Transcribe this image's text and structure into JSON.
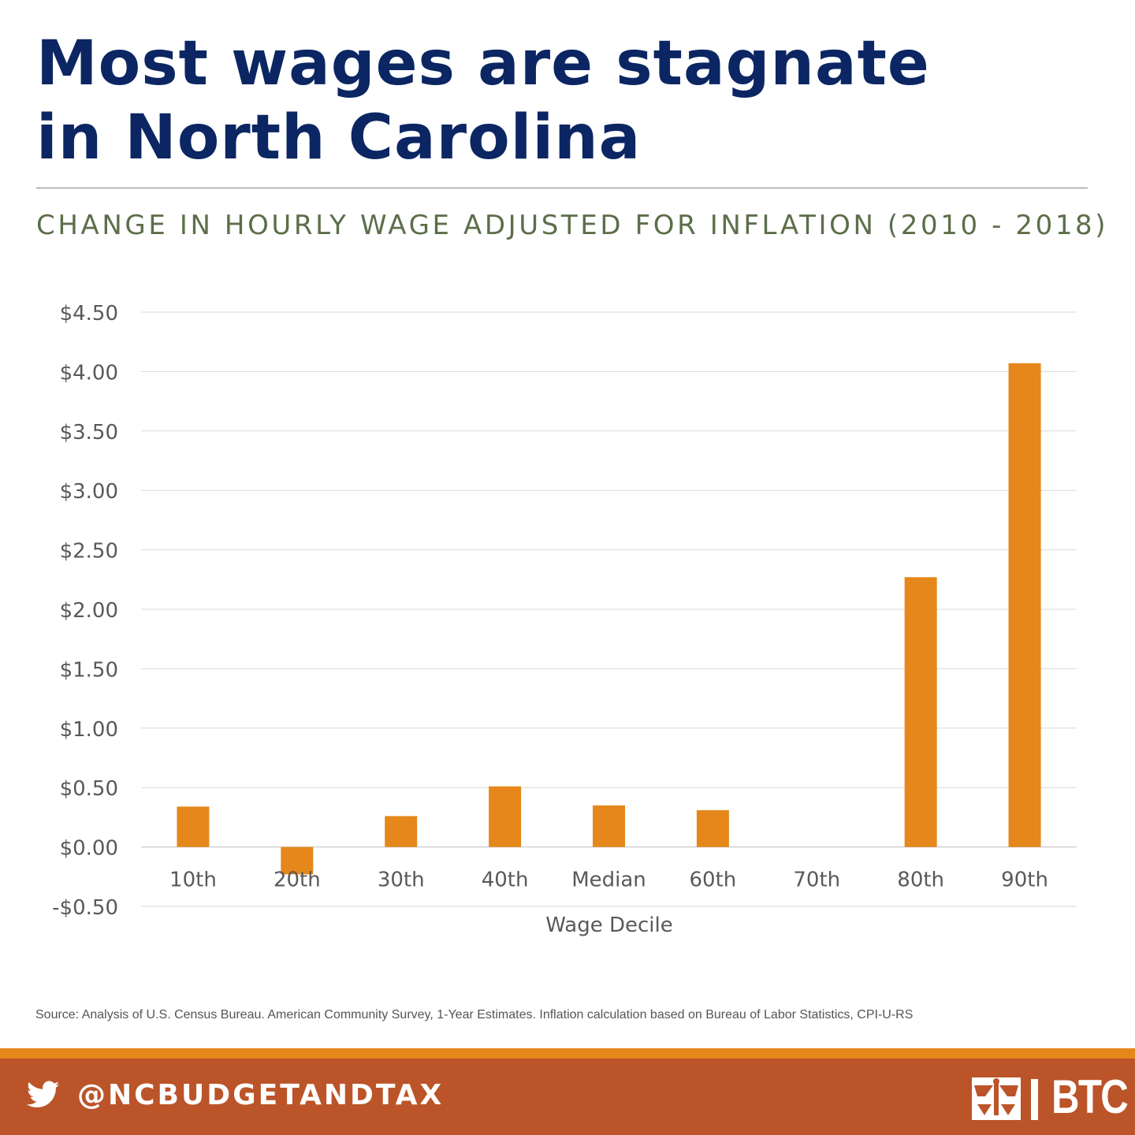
{
  "header": {
    "title_line1": "Most wages are stagnate",
    "title_line2": "in North Carolina",
    "subtitle": "CHANGE IN HOURLY WAGE ADJUSTED FOR INFLATION (2010 - 2018)"
  },
  "chart_data": {
    "type": "bar",
    "categories": [
      "10th",
      "20th",
      "30th",
      "40th",
      "Median",
      "60th",
      "70th",
      "80th",
      "90th"
    ],
    "values": [
      0.34,
      -0.23,
      0.26,
      0.51,
      0.35,
      0.31,
      0.0,
      2.27,
      4.07
    ],
    "xlabel": "Wage Decile",
    "ylabel": "",
    "ylim": [
      -0.5,
      4.5
    ],
    "yticks": [
      4.5,
      4.0,
      3.5,
      3.0,
      2.5,
      2.0,
      1.5,
      1.0,
      0.5,
      0.0,
      -0.5
    ],
    "ytick_labels": [
      "$4.50",
      "$4.00",
      "$3.50",
      "$3.00",
      "$2.50",
      "$2.00",
      "$1.50",
      "$1.00",
      "$0.50",
      "$0.00",
      "-$0.50"
    ],
    "grid": true,
    "legend": "none",
    "bar_color": "#e5871a"
  },
  "source": "Source: Analysis of U.S. Census Bureau. American Community Survey, 1-Year Estimates. Inflation calculation based on Bureau of Labor Statistics, CPI-U-RS",
  "footer": {
    "handle": "@NCBUDGETANDTAX",
    "icon": "twitter-icon",
    "logo_text": "BTC",
    "accent_color": "#e5871a",
    "footer_color": "#bb5429"
  }
}
